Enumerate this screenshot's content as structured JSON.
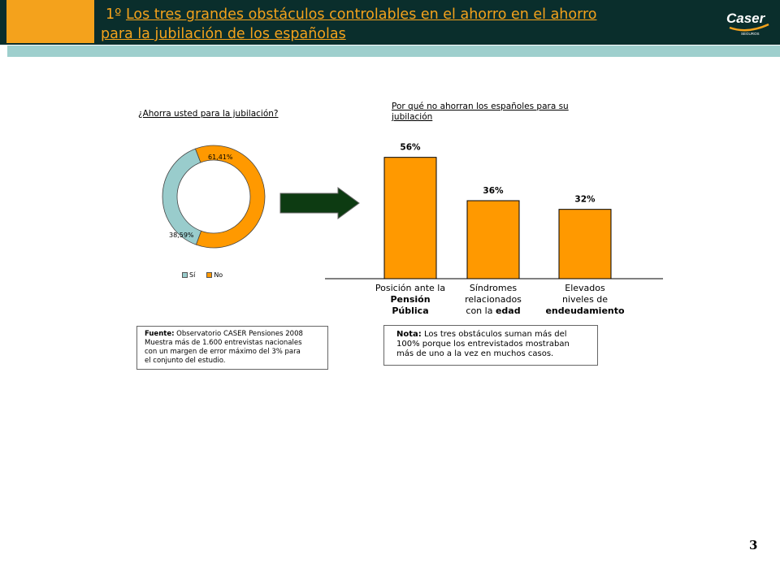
{
  "header": {
    "number": "1º",
    "title_line1": "Los tres grandes obstáculos controlables en el ahorro en el ahorro",
    "title_line2": "para la jubilación de los españolas",
    "logo_text": "Caser",
    "logo_sub": "SEGUROS"
  },
  "left_question": "¿Ahorra usted para la jubilación?",
  "right_question": "Por qué no ahorran los españoles para su jubilación",
  "colors": {
    "orange": "#ff9900",
    "teal": "#99cccc",
    "dark": "#0a2e2c",
    "arrow": "#0d3b12"
  },
  "chart_data": [
    {
      "type": "pie",
      "title": "¿Ahorra usted para la jubilación?",
      "donut": true,
      "categories": [
        "Sí",
        "No"
      ],
      "values": [
        38.59,
        61.41
      ],
      "value_labels": [
        "38,59%",
        "61,41%"
      ],
      "colors": [
        "#99cccc",
        "#ff9900"
      ],
      "legend": "bottom"
    },
    {
      "type": "bar",
      "title": "Por qué no ahorran los españoles para su jubilación",
      "categories": [
        {
          "line1": "Posición ante la",
          "line2_bold": "Pensión",
          "line3_bold": "Pública"
        },
        {
          "line1": "Síndromes",
          "line2": "relacionados",
          "line3_pre": "con la ",
          "line3_bold": "edad"
        },
        {
          "line1": "Elevados",
          "line2": "niveles de",
          "line3_bold": "endeudamiento"
        }
      ],
      "values": [
        56,
        36,
        32
      ],
      "value_labels": [
        "56%",
        "36%",
        "32%"
      ],
      "ylim": [
        0,
        60
      ],
      "color": "#ff9900"
    }
  ],
  "fuente": {
    "label": "Fuente:",
    "line1": " Observatorio CASER Pensiones 2008",
    "line2": "Muestra más de 1.600 entrevistas nacionales",
    "line3": "con un margen de error máximo del 3% para",
    "line4": "el conjunto del estudio."
  },
  "nota": {
    "label": "Nota:",
    "line1": " Los tres obstáculos suman más del",
    "line2": "100% porque los entrevistados mostraban",
    "line3": "más de uno a la vez en muchos casos."
  },
  "page_number": "3"
}
